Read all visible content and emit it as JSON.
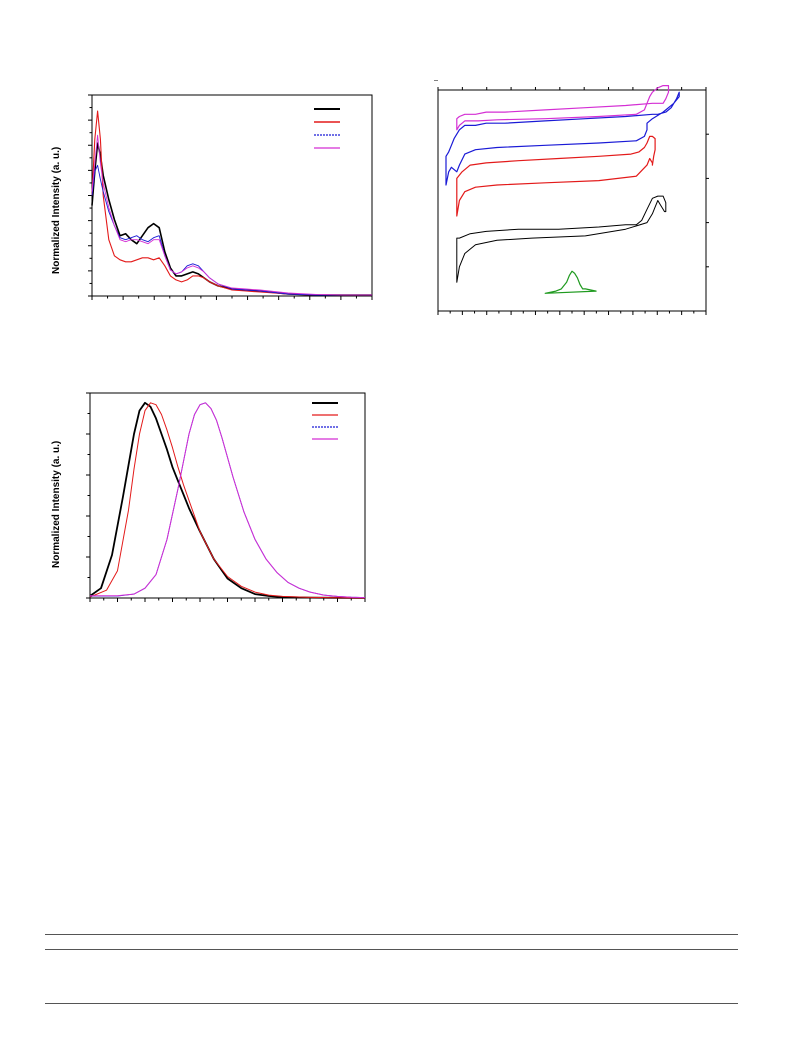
{
  "chart_data": [
    {
      "type": "line",
      "ylabel": "Normalized Intensity (a. u.)",
      "xlim": [
        0,
        100
      ],
      "ylim": [
        0,
        1.0
      ],
      "legend": "top-right",
      "series": [
        {
          "color": "#000000",
          "width": 1.6,
          "x": [
            0,
            1,
            2,
            3,
            4,
            6,
            8,
            10,
            12,
            14,
            16,
            18,
            20,
            22,
            24,
            26,
            28,
            30,
            32,
            34,
            36,
            38,
            40,
            42,
            45,
            50,
            55,
            60,
            70,
            80,
            90,
            100
          ],
          "y": [
            0.45,
            0.62,
            0.76,
            0.7,
            0.6,
            0.48,
            0.38,
            0.3,
            0.31,
            0.28,
            0.26,
            0.3,
            0.34,
            0.36,
            0.34,
            0.22,
            0.14,
            0.1,
            0.1,
            0.11,
            0.12,
            0.11,
            0.09,
            0.07,
            0.05,
            0.035,
            0.03,
            0.025,
            0.01,
            0.005,
            0.005,
            0.005
          ]
        },
        {
          "color": "#e31a1a",
          "width": 1.1,
          "x": [
            0,
            1,
            2,
            3,
            4,
            6,
            8,
            10,
            12,
            14,
            16,
            18,
            20,
            22,
            24,
            26,
            28,
            30,
            32,
            34,
            36,
            38,
            40,
            42,
            45,
            50,
            55,
            60,
            70,
            80,
            90,
            100
          ],
          "y": [
            0.5,
            0.78,
            0.92,
            0.78,
            0.5,
            0.28,
            0.2,
            0.18,
            0.17,
            0.17,
            0.18,
            0.19,
            0.19,
            0.18,
            0.19,
            0.15,
            0.1,
            0.08,
            0.07,
            0.08,
            0.1,
            0.1,
            0.09,
            0.07,
            0.05,
            0.03,
            0.025,
            0.02,
            0.01,
            0.005,
            0.005,
            0.005
          ]
        },
        {
          "color": "#1a1ad6",
          "width": 0.9,
          "x": [
            0,
            1,
            2,
            3,
            4,
            6,
            8,
            10,
            12,
            14,
            16,
            18,
            20,
            22,
            24,
            26,
            28,
            30,
            32,
            34,
            36,
            38,
            40,
            42,
            45,
            50,
            55,
            60,
            70,
            80,
            90,
            100
          ],
          "y": [
            0.5,
            0.62,
            0.65,
            0.58,
            0.52,
            0.42,
            0.35,
            0.29,
            0.28,
            0.29,
            0.3,
            0.28,
            0.27,
            0.29,
            0.3,
            0.2,
            0.13,
            0.11,
            0.12,
            0.15,
            0.16,
            0.15,
            0.12,
            0.09,
            0.06,
            0.035,
            0.03,
            0.025,
            0.01,
            0.005,
            0.005,
            0.005
          ]
        },
        {
          "color": "#d42fd4",
          "width": 0.9,
          "x": [
            0,
            1,
            2,
            3,
            4,
            6,
            8,
            10,
            12,
            14,
            16,
            18,
            20,
            22,
            24,
            26,
            28,
            30,
            32,
            34,
            36,
            38,
            40,
            42,
            45,
            50,
            55,
            60,
            70,
            80,
            90,
            100
          ],
          "y": [
            0.52,
            0.66,
            0.8,
            0.66,
            0.56,
            0.44,
            0.35,
            0.28,
            0.27,
            0.28,
            0.28,
            0.27,
            0.26,
            0.28,
            0.28,
            0.2,
            0.13,
            0.11,
            0.12,
            0.14,
            0.15,
            0.14,
            0.12,
            0.09,
            0.06,
            0.04,
            0.035,
            0.03,
            0.015,
            0.008,
            0.005,
            0.005
          ]
        }
      ]
    },
    {
      "type": "line",
      "xlim": [
        0,
        100
      ],
      "ylim": [
        0,
        100
      ],
      "series": [
        {
          "color": "#000000",
          "width": 1.0,
          "x": [
            7,
            8,
            10,
            14,
            22,
            35,
            55,
            70,
            78,
            80,
            81,
            82,
            83,
            84,
            84.5,
            85,
            85,
            84,
            82,
            80,
            78,
            76,
            74,
            70,
            60,
            45,
            30,
            18,
            12,
            8,
            7
          ],
          "y": [
            13,
            20,
            26,
            30,
            32,
            33,
            34,
            37,
            40,
            44,
            47,
            50,
            48,
            46,
            45,
            45,
            49,
            52,
            52,
            51,
            46,
            41,
            39,
            39,
            38,
            37,
            37,
            36,
            35,
            33,
            33
          ]
        },
        {
          "color": "#e31a1a",
          "width": 1.2,
          "x": [
            7,
            8,
            10,
            14,
            22,
            40,
            60,
            74,
            78,
            79,
            80,
            80,
            80.5,
            81,
            81,
            80,
            79,
            78,
            77,
            75,
            72,
            60,
            45,
            30,
            18,
            12,
            9,
            7
          ],
          "y": [
            43,
            50,
            54,
            56,
            57,
            58,
            59,
            61,
            66,
            69,
            67,
            66,
            70,
            73,
            78,
            79,
            79,
            76,
            74,
            72,
            71,
            70,
            69,
            68,
            67,
            66,
            63,
            60
          ]
        },
        {
          "color": "#1a1ad6",
          "width": 1.2,
          "x": [
            3,
            4,
            5,
            6,
            7,
            8,
            10,
            14,
            22,
            40,
            60,
            74,
            77,
            78,
            78,
            80,
            84,
            88,
            90,
            90,
            89,
            87,
            85,
            82,
            80,
            70,
            55,
            40,
            25,
            18,
            14,
            12,
            10,
            8,
            6,
            5,
            4,
            3
          ],
          "y": [
            57,
            63,
            65,
            64,
            63,
            66,
            71,
            73,
            74,
            75,
            76,
            77,
            79,
            82,
            85,
            87,
            90,
            94,
            97,
            99,
            96,
            92,
            90,
            89,
            89,
            88,
            87,
            86,
            85,
            85,
            84,
            84,
            84,
            82,
            78,
            75,
            72,
            70
          ]
        },
        {
          "color": "#d42fd4",
          "width": 1.2,
          "x": [
            7,
            8,
            9,
            10,
            12,
            15,
            22,
            40,
            60,
            74,
            77,
            78,
            79,
            80,
            82,
            84,
            86,
            86,
            85,
            84,
            82,
            80,
            70,
            55,
            40,
            25,
            18,
            14,
            12,
            10,
            8,
            7
          ],
          "y": [
            82,
            84,
            85,
            86,
            86,
            86,
            86.5,
            87,
            88,
            89,
            91,
            94,
            97,
            99,
            101,
            102,
            102,
            99,
            96,
            94,
            94,
            94,
            93,
            92,
            91,
            90,
            90,
            89,
            89,
            89,
            88,
            87
          ]
        },
        {
          "color": "#1f9a1f",
          "width": 1.2,
          "x": [
            40,
            44,
            46,
            48,
            49,
            50,
            51,
            52,
            53,
            54,
            55,
            57,
            59
          ],
          "y": [
            8,
            9,
            10,
            13,
            16,
            18,
            17,
            15,
            12,
            10,
            10,
            9.5,
            9
          ]
        }
      ]
    },
    {
      "type": "line",
      "ylabel": "Normalized Intensity (a. u.)",
      "xlim": [
        0,
        100
      ],
      "ylim": [
        0,
        1.05
      ],
      "legend": "top-right",
      "series": [
        {
          "color": "#000000",
          "width": 1.8,
          "x": [
            0,
            4,
            8,
            12,
            14,
            16,
            18,
            20,
            22,
            24,
            26,
            28,
            30,
            32,
            34,
            36,
            40,
            45,
            50,
            55,
            60,
            65,
            70,
            80,
            90,
            100
          ],
          "y": [
            0.01,
            0.05,
            0.22,
            0.52,
            0.68,
            0.84,
            0.96,
            1.0,
            0.98,
            0.92,
            0.84,
            0.76,
            0.67,
            0.6,
            0.53,
            0.46,
            0.34,
            0.2,
            0.1,
            0.05,
            0.02,
            0.01,
            0.005,
            0.002,
            0.001,
            0.0
          ]
        },
        {
          "color": "#e31a1a",
          "width": 1.0,
          "x": [
            0,
            6,
            10,
            14,
            16,
            18,
            20,
            22,
            24,
            26,
            28,
            30,
            32,
            34,
            36,
            40,
            45,
            50,
            55,
            60,
            65,
            70,
            80,
            90,
            100
          ],
          "y": [
            0.005,
            0.04,
            0.14,
            0.45,
            0.66,
            0.84,
            0.96,
            1.0,
            0.99,
            0.94,
            0.86,
            0.77,
            0.67,
            0.58,
            0.5,
            0.34,
            0.2,
            0.11,
            0.06,
            0.03,
            0.015,
            0.008,
            0.003,
            0.001,
            0.0
          ]
        },
        {
          "color": "#1a1ad6",
          "width": 0.9,
          "x": [
            0,
            10,
            16,
            20,
            24,
            28,
            32,
            36,
            38,
            40,
            42,
            44,
            46,
            48,
            50,
            52,
            56,
            60,
            64,
            68,
            72,
            76,
            80,
            85,
            90,
            95,
            100
          ],
          "y": [
            0.01,
            0.01,
            0.02,
            0.05,
            0.12,
            0.3,
            0.56,
            0.84,
            0.94,
            0.99,
            1.0,
            0.97,
            0.91,
            0.82,
            0.72,
            0.62,
            0.44,
            0.3,
            0.2,
            0.13,
            0.08,
            0.05,
            0.03,
            0.015,
            0.008,
            0.004,
            0.002
          ]
        },
        {
          "color": "#d42fd4",
          "width": 1.0,
          "x": [
            0,
            10,
            16,
            20,
            24,
            28,
            32,
            36,
            38,
            40,
            42,
            44,
            46,
            48,
            50,
            52,
            56,
            60,
            64,
            68,
            72,
            76,
            80,
            85,
            90,
            95,
            100
          ],
          "y": [
            0.012,
            0.012,
            0.02,
            0.05,
            0.12,
            0.3,
            0.56,
            0.84,
            0.94,
            0.99,
            1.0,
            0.97,
            0.91,
            0.82,
            0.72,
            0.62,
            0.44,
            0.3,
            0.2,
            0.13,
            0.08,
            0.05,
            0.03,
            0.015,
            0.008,
            0.004,
            0.002
          ]
        }
      ]
    }
  ]
}
